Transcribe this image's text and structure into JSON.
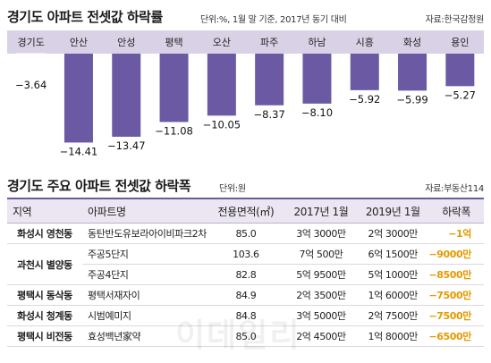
{
  "chart_data": {
    "type": "bar",
    "title": "경기도 아파트 전셋값 하락률",
    "note": "단위:%, 1월 말 기준, 2017년 동기 대비",
    "source": "자료:한국감정원",
    "categories": [
      "경기도",
      "안산",
      "안성",
      "평택",
      "오산",
      "파주",
      "하남",
      "시흥",
      "화성",
      "용인"
    ],
    "values": [
      -3.64,
      -14.41,
      -13.47,
      -11.08,
      -10.05,
      -8.37,
      -8.1,
      -5.92,
      -5.99,
      -5.27
    ],
    "value_labels": [
      "−3.64",
      "−14.41",
      "−13.47",
      "−11.08",
      "−10.05",
      "−8.37",
      "−8.10",
      "−5.92",
      "−5.99",
      "−5.27"
    ],
    "colors": {
      "highlight": "#ffffff",
      "bar": "#6b5aa3",
      "band": "#d9d2e6",
      "bar_outline": "#9a8dc0"
    }
  },
  "table": {
    "title": "경기도 주요 아파트 전셋값 하락폭",
    "unit": "단위:원",
    "source": "자료:부동산114",
    "headers": [
      "지역",
      "아파트명",
      "전용면적(㎡)",
      "2017년 1월",
      "2019년 1월",
      "하락폭"
    ],
    "rows": [
      {
        "region": "화성시 영천동",
        "apt": "동탄반도유보라아이비파크2차",
        "area": "85.0",
        "y2017": "3억 3000만",
        "y2019": "2억 3000만",
        "drop": "−1억"
      },
      {
        "region": "과천시 별양동",
        "apt": "주공5단지",
        "area": "103.6",
        "y2017": "7억 500만",
        "y2019": "6억 1500만",
        "drop": "−9000만"
      },
      {
        "region": "",
        "apt": "주공4단지",
        "area": "82.8",
        "y2017": "5억 9500만",
        "y2019": "5억 1000만",
        "drop": "−8500만"
      },
      {
        "region": "평택시 동삭동",
        "apt": "평택서재자이",
        "area": "84.9",
        "y2017": "2억 3500만",
        "y2019": "1억 6000만",
        "drop": "−7500만"
      },
      {
        "region": "화성시 청계동",
        "apt": "시범예미지",
        "area": "84.8",
        "y2017": "3억 5000만",
        "y2019": "2억 7500만",
        "drop": "−7500만"
      },
      {
        "region": "평택시 비전동",
        "apt": "효성백년家약",
        "area": "85.0",
        "y2017": "2억 4500만",
        "y2019": "1억 8000만",
        "drop": "−6500만"
      }
    ]
  },
  "watermark": "이데일리"
}
